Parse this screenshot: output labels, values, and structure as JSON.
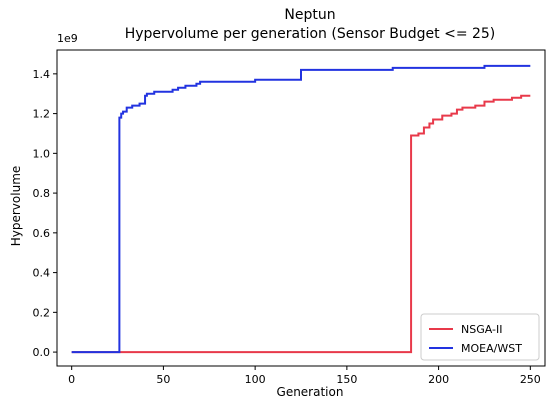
{
  "chart_data": {
    "type": "line",
    "title": "Neptun",
    "subtitle": "Hypervolume per generation (Sensor Budget <= 25)",
    "xlabel": "Generation",
    "ylabel": "Hypervolume",
    "y_offset_label": "1e9",
    "xlim": [
      -8,
      258
    ],
    "ylim": [
      -0.07,
      1.52
    ],
    "xticks": [
      0,
      50,
      100,
      150,
      200,
      250
    ],
    "xtick_labels": [
      "0",
      "50",
      "100",
      "150",
      "200",
      "250"
    ],
    "yticks": [
      0.0,
      0.2,
      0.4,
      0.6,
      0.8,
      1.0,
      1.2,
      1.4
    ],
    "ytick_labels": [
      "0.0",
      "0.2",
      "0.4",
      "0.6",
      "0.8",
      "1.0",
      "1.2",
      "1.4"
    ],
    "grid": false,
    "legend_position": "lower-right",
    "series": [
      {
        "name": "NSGA-II",
        "color": "#e8394a",
        "step": true,
        "x": [
          0,
          185,
          185,
          187,
          189,
          192,
          195,
          197,
          202,
          207,
          210,
          213,
          220,
          225,
          230,
          240,
          245,
          250
        ],
        "y": [
          0.0,
          0.0,
          1.09,
          1.09,
          1.1,
          1.13,
          1.15,
          1.17,
          1.19,
          1.2,
          1.22,
          1.23,
          1.24,
          1.26,
          1.27,
          1.28,
          1.29,
          1.29
        ]
      },
      {
        "name": "MOEA/WST",
        "color": "#2233e0",
        "step": true,
        "x": [
          0,
          26,
          26,
          27,
          28,
          30,
          33,
          37,
          40,
          41,
          45,
          50,
          55,
          58,
          62,
          68,
          70,
          80,
          90,
          100,
          110,
          124,
          125,
          150,
          175,
          200,
          225,
          240,
          250
        ],
        "y": [
          0.0,
          0.0,
          1.18,
          1.2,
          1.21,
          1.23,
          1.24,
          1.25,
          1.29,
          1.3,
          1.31,
          1.31,
          1.32,
          1.33,
          1.34,
          1.35,
          1.36,
          1.36,
          1.36,
          1.37,
          1.37,
          1.37,
          1.42,
          1.42,
          1.43,
          1.43,
          1.44,
          1.44,
          1.44
        ]
      }
    ]
  }
}
